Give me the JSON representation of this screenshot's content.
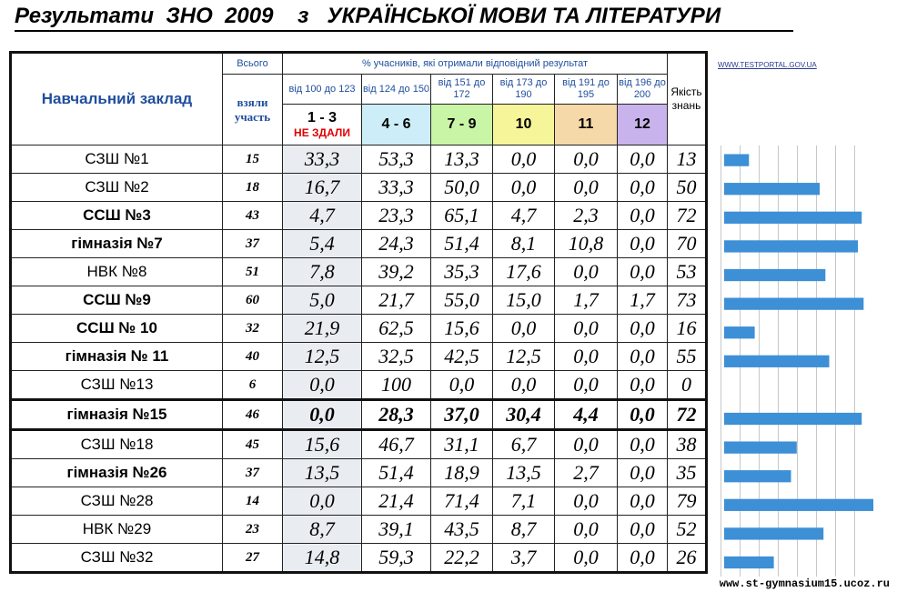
{
  "title": "Результати  ЗНО  2009    з   УКРАЇНСЬКОЇ МОВИ ТА ЛІТЕРАТУРИ",
  "header": {
    "school": "Навчальний заклад",
    "total_top": "Всього",
    "total_bottom": "взяли участь",
    "percent_caption": "% учасників, які отримали відповідний результат",
    "ranges": [
      "від 100 до 123",
      "від 124 до 150",
      "від 151 до 172",
      "від 173 до 190",
      "від 191 до 195",
      "від 196 до 200"
    ],
    "grades": [
      "1 - 3",
      "4 - 6",
      "7 - 9",
      "10",
      "11",
      "12"
    ],
    "not_passed": "НЕ ЗДАЛИ",
    "quality": "Якість знань"
  },
  "site_link": "WWW.TESTPORTAL.GOV.UA",
  "footer": "www.st-gymnasium15.ucoz.ru",
  "colors": {
    "bar": "#3d8fd6",
    "grade_1_3": "#ffffff",
    "grade_4_6": "#cdeef9",
    "grade_7_9": "#c9f5a6",
    "grade_10": "#f7f59a",
    "grade_11": "#f6d9a8",
    "grade_12": "#c9b3ec"
  },
  "chart_data": {
    "type": "table",
    "columns": [
      "Навчальний заклад",
      "взяли участь",
      "1 - 3",
      "4 - 6",
      "7 - 9",
      "10",
      "11",
      "12",
      "Якість знань"
    ],
    "rows": [
      {
        "name": "СЗШ №1",
        "bold": false,
        "participants": "15",
        "values": [
          "33,3",
          "53,3",
          "13,3",
          "0,0",
          "0,0",
          "0,0"
        ],
        "quality": "13",
        "q": 13
      },
      {
        "name": "СЗШ №2",
        "bold": false,
        "participants": "18",
        "values": [
          "16,7",
          "33,3",
          "50,0",
          "0,0",
          "0,0",
          "0,0"
        ],
        "quality": "50",
        "q": 50
      },
      {
        "name": "ССШ №3",
        "bold": true,
        "participants": "43",
        "values": [
          "4,7",
          "23,3",
          "65,1",
          "4,7",
          "2,3",
          "0,0"
        ],
        "quality": "72",
        "q": 72
      },
      {
        "name": "гімназія №7",
        "bold": true,
        "participants": "37",
        "values": [
          "5,4",
          "24,3",
          "51,4",
          "8,1",
          "10,8",
          "0,0"
        ],
        "quality": "70",
        "q": 70
      },
      {
        "name": "НВК №8",
        "bold": false,
        "participants": "51",
        "values": [
          "7,8",
          "39,2",
          "35,3",
          "17,6",
          "0,0",
          "0,0"
        ],
        "quality": "53",
        "q": 53
      },
      {
        "name": "ССШ №9",
        "bold": true,
        "participants": "60",
        "values": [
          "5,0",
          "21,7",
          "55,0",
          "15,0",
          "1,7",
          "1,7"
        ],
        "quality": "73",
        "q": 73
      },
      {
        "name": "ССШ № 10",
        "bold": true,
        "participants": "32",
        "values": [
          "21,9",
          "62,5",
          "15,6",
          "0,0",
          "0,0",
          "0,0"
        ],
        "quality": "16",
        "q": 16
      },
      {
        "name": "гімназія № 11",
        "bold": true,
        "participants": "40",
        "values": [
          "12,5",
          "32,5",
          "42,5",
          "12,5",
          "0,0",
          "0,0"
        ],
        "quality": "55",
        "q": 55
      },
      {
        "name": "СЗШ №13",
        "bold": false,
        "participants": "6",
        "values": [
          "0,0",
          "100",
          "0,0",
          "0,0",
          "0,0",
          "0,0"
        ],
        "quality": "0",
        "q": 0
      },
      {
        "name": "гімназія №15",
        "bold": true,
        "highlight": true,
        "participants": "46",
        "values": [
          "0,0",
          "28,3",
          "37,0",
          "30,4",
          "4,4",
          "0,0"
        ],
        "quality": "72",
        "q": 72
      },
      {
        "name": "СЗШ №18",
        "bold": false,
        "participants": "45",
        "values": [
          "15,6",
          "46,7",
          "31,1",
          "6,7",
          "0,0",
          "0,0"
        ],
        "quality": "38",
        "q": 38
      },
      {
        "name": "гімназія №26",
        "bold": true,
        "participants": "37",
        "values": [
          "13,5",
          "51,4",
          "18,9",
          "13,5",
          "2,7",
          "0,0"
        ],
        "quality": "35",
        "q": 35
      },
      {
        "name": "СЗШ №28",
        "bold": false,
        "participants": "14",
        "values": [
          "0,0",
          "21,4",
          "71,4",
          "7,1",
          "0,0",
          "0,0"
        ],
        "quality": "79",
        "q": 79
      },
      {
        "name": "НВК  №29",
        "bold": false,
        "participants": "23",
        "values": [
          "8,7",
          "39,1",
          "43,5",
          "8,7",
          "0,0",
          "0,0"
        ],
        "quality": "52",
        "q": 52
      },
      {
        "name": "СЗШ №32",
        "bold": false,
        "participants": "27",
        "values": [
          "14,8",
          "59,3",
          "22,2",
          "3,7",
          "0,0",
          "0,0"
        ],
        "quality": "26",
        "q": 26
      }
    ],
    "bar_series": {
      "type": "bar",
      "orientation": "horizontal",
      "x_range": [
        0,
        80
      ],
      "grid": true
    }
  }
}
